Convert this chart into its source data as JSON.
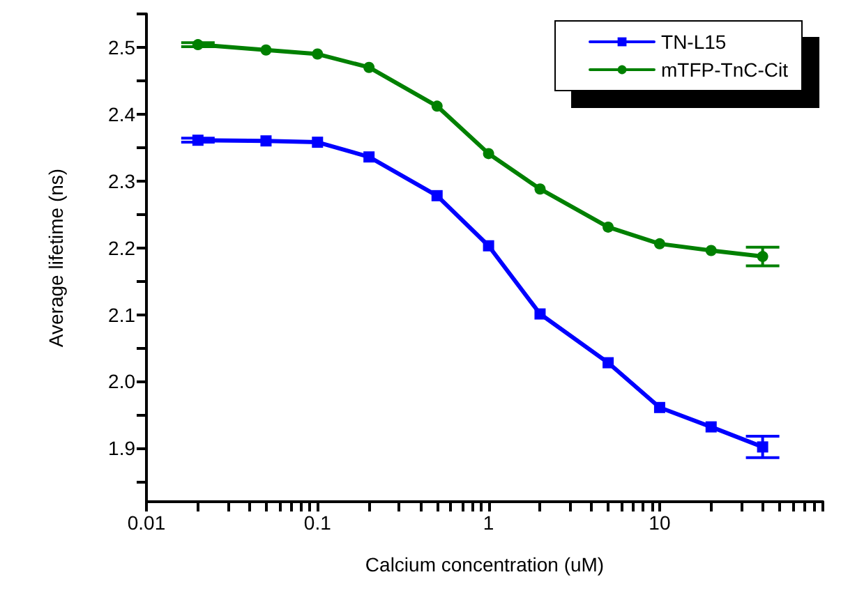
{
  "chart_data": {
    "type": "line",
    "xlabel": "Calcium concentration (uM)",
    "ylabel": "Average lifetime (ns)",
    "x": [
      0.02,
      0.05,
      0.1,
      0.2,
      0.5,
      1,
      2,
      5,
      10,
      20,
      40
    ],
    "series": [
      {
        "name": "TN-L15",
        "color": "#0000ff",
        "marker": "square",
        "values": [
          2.361,
          2.36,
          2.358,
          2.336,
          2.278,
          2.203,
          2.101,
          2.028,
          1.961,
          1.932,
          1.902
        ],
        "errors": [
          0.003,
          null,
          null,
          null,
          null,
          null,
          null,
          null,
          null,
          null,
          0.016
        ]
      },
      {
        "name": "mTFP-TnC-Cit",
        "color": "#008000",
        "marker": "circle",
        "values": [
          2.504,
          2.496,
          2.49,
          2.47,
          2.412,
          2.341,
          2.288,
          2.231,
          2.206,
          2.196,
          2.187
        ],
        "errors": [
          0.003,
          null,
          null,
          null,
          null,
          null,
          null,
          null,
          null,
          null,
          0.014
        ]
      }
    ],
    "log": "x",
    "xlim": [
      0.01,
      90
    ],
    "xticks": [
      0.01,
      {
        "value": 0.02,
        "label": null
      },
      {
        "value": 0.03,
        "label": null
      },
      {
        "value": 0.04,
        "label": null
      },
      {
        "value": 0.05,
        "label": null
      },
      {
        "value": 0.06,
        "label": null
      },
      {
        "value": 0.07,
        "label": null
      },
      {
        "value": 0.08,
        "label": null
      },
      {
        "value": 0.09,
        "label": null
      },
      0.1,
      {
        "value": 0.2,
        "label": null
      },
      {
        "value": 0.3,
        "label": null
      },
      {
        "value": 0.4,
        "label": null
      },
      {
        "value": 0.5,
        "label": null
      },
      {
        "value": 0.6,
        "label": null
      },
      {
        "value": 0.7,
        "label": null
      },
      {
        "value": 0.8,
        "label": null
      },
      {
        "value": 0.9,
        "label": null
      },
      1,
      {
        "value": 2,
        "label": null
      },
      {
        "value": 3,
        "label": null
      },
      {
        "value": 4,
        "label": null
      },
      {
        "value": 5,
        "label": null
      },
      {
        "value": 6,
        "label": null
      },
      {
        "value": 7,
        "label": null
      },
      {
        "value": 8,
        "label": null
      },
      {
        "value": 9,
        "label": null
      },
      10,
      {
        "value": 20,
        "label": null
      },
      {
        "value": 30,
        "label": null
      },
      {
        "value": 40,
        "label": null
      },
      {
        "value": 50,
        "label": null
      },
      {
        "value": 60,
        "label": null
      },
      {
        "value": 70,
        "label": null
      },
      {
        "value": 80,
        "label": null
      },
      {
        "value": 90,
        "label": null
      }
    ],
    "ylim": [
      1.82,
      2.55
    ],
    "yticks": [
      {
        "value": 1.85,
        "label": null
      },
      1.9,
      {
        "value": 1.95,
        "label": null
      },
      {
        "value": 2,
        "label": "2.0"
      },
      {
        "value": 2.05,
        "label": null
      },
      2.1,
      {
        "value": 2.15,
        "label": null
      },
      2.2,
      {
        "value": 2.25,
        "label": null
      },
      2.3,
      {
        "value": 2.35,
        "label": null
      },
      2.4,
      {
        "value": 2.45,
        "label": null
      },
      2.5,
      {
        "value": 2.55,
        "label": null
      }
    ],
    "grid": false,
    "legend": "top right",
    "line_style": "solid"
  }
}
